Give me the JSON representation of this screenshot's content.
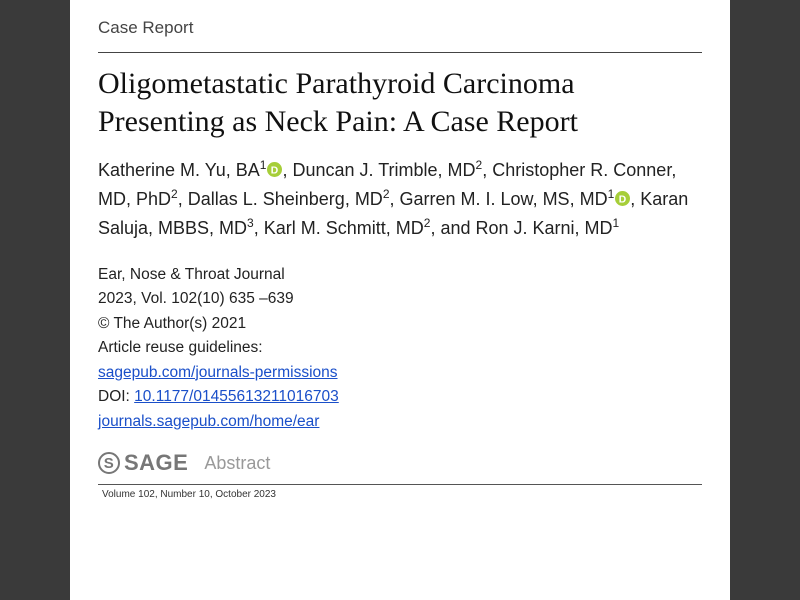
{
  "article_type": "Case Report",
  "title": "Oligometastatic Parathyroid Carcinoma Presenting as Neck Pain: A Case Report",
  "authors": [
    {
      "name": "Katherine M. Yu, BA",
      "aff": "1",
      "orcid": true,
      "sep": ", "
    },
    {
      "name": "Duncan J. Trimble, MD",
      "aff": "2",
      "orcid": false,
      "sep": ", "
    },
    {
      "name": "Christopher R. Conner, MD, PhD",
      "aff": "2",
      "orcid": false,
      "sep": ", "
    },
    {
      "name": "Dallas L. Sheinberg, MD",
      "aff": "2",
      "orcid": false,
      "sep": ", "
    },
    {
      "name": "Garren M. I. Low, MS, MD",
      "aff": "1",
      "orcid": true,
      "sep": ", "
    },
    {
      "name": "Karan Saluja, MBBS, MD",
      "aff": "3",
      "orcid": false,
      "sep": ", "
    },
    {
      "name": "Karl M. Schmitt, MD",
      "aff": "2",
      "orcid": false,
      "sep": ", and "
    },
    {
      "name": "Ron J. Karni, MD",
      "aff": "1",
      "orcid": false,
      "sep": ""
    }
  ],
  "meta": {
    "journal": "Ear, Nose & Throat Journal",
    "citation": "2023, Vol. 102(10) 635 –639",
    "copyright": "© The Author(s) 2021",
    "reuse_label": "Article reuse guidelines:",
    "permissions_link_text": "sagepub.com/journals-permissions",
    "doi_label": "DOI: ",
    "doi_link_text": "10.1177/01455613211016703",
    "home_link_text": "journals.sagepub.com/home/ear"
  },
  "publisher_logo_text": "SAGE",
  "abstract_heading": "Abstract",
  "footer": "Volume 102, Number 10, October 2023",
  "colors": {
    "page_bg": "#ffffff",
    "outer_bg": "#3a3a3a",
    "link": "#1a4fc9",
    "text": "#222222",
    "muted": "#999999",
    "orcid_green": "#a6ce39"
  }
}
